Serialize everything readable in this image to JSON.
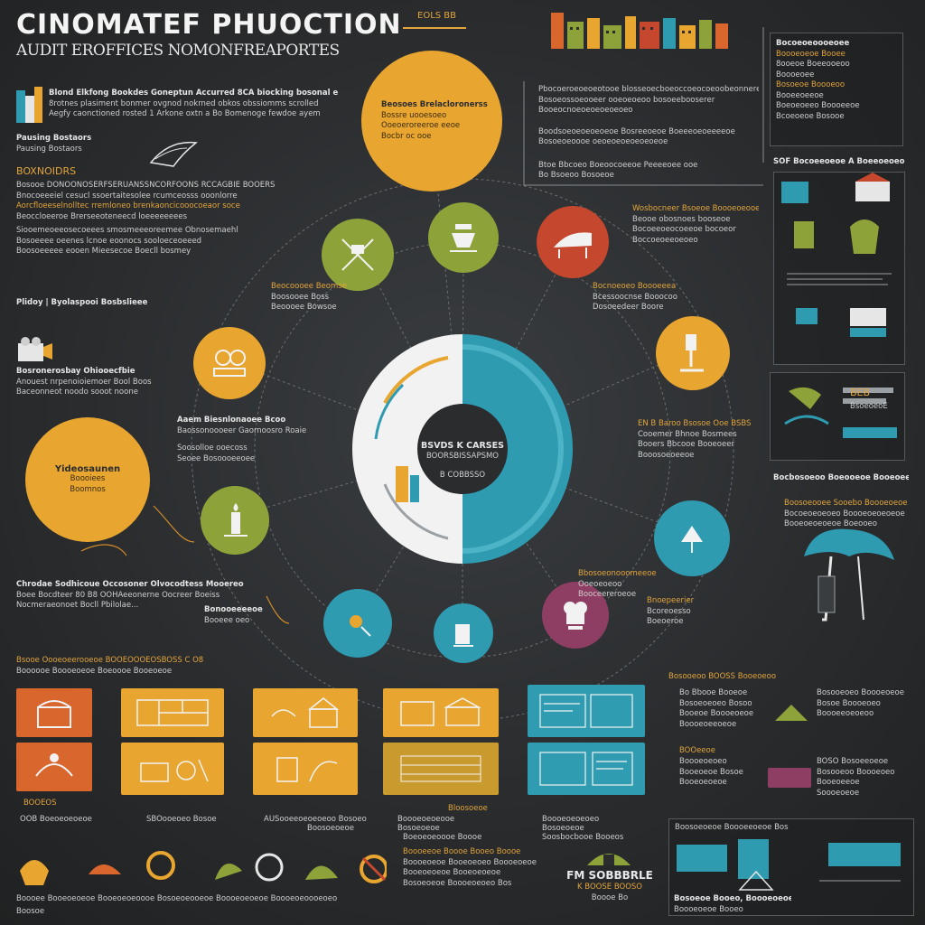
{
  "header": {
    "title": "CINOMATEF PHUOCTION",
    "subtitle": "AUDIT EROFFICES NOMONFREAPORTES"
  },
  "top_badge": "EOLS BB",
  "top_left_block": {
    "lines": [
      "Blond Elkfong Bookdes Goneptun Accurred 8CA biocking bosonal emtnodal",
      "8rotnes plasiment bonmer ovgnod nokrned obkos obssiomms scrolled",
      "Aegfy caonctioned rosted 1 Arkone oxtn a Bo Bomenoge fewdoe ayem"
    ]
  },
  "left_list": {
    "heading_1": "Pausing Bostaors",
    "heading_2": "BOXNOIDRS",
    "lines": [
      "Bosooe DONOONOSERFSERUANSSNCORFOONS RCCAGBIE BOOERS",
      "Bnocoeeeiel cesucl ssoertaitesolee rcumceosss ooonlorre",
      "Aorcfloeeselnolltec rremloneo brenkaoncicooocoeaor soce",
      "Beoccloeeroe Brerseeoteneecd loeeeeeeees",
      "Siooemeoeeosecoeees smosmeeeoreemee Obnosemaehl",
      "Bosoeeee oeenes lcnoe eoonocs sooloeceoeeed",
      "Boosoeeeee eooen Mieesecoe Boecll bosmey"
    ],
    "footer": "Plidoy | Byolaspooi Bosbslieee"
  },
  "left_mid": {
    "head": "Bosronerosbay Ohiooecfbie",
    "lines": [
      "Anouest nrpenoioiemoer Bool Boos",
      "Baceonneot noodo sooot noone"
    ]
  },
  "left_big_circle": {
    "label": "Yideosaunen",
    "lines": [
      "Boooiees",
      "Boomnos"
    ]
  },
  "left_bottom_block": {
    "lines": [
      "Chrodae Sodhicoue Occosoner Olvocodtess Mooereo",
      "Boee Bocdteer 80 B8 OOHAeeonerne Oocreer Boeiss",
      "Nocmeraeonoet Bocll Pbilolae..."
    ]
  },
  "hub": {
    "line_1": "BSVDS K CARSES",
    "line_2": "BOORSBISSAPSMO",
    "line_3": "B COBBSSO"
  },
  "top_circle": {
    "lines": [
      "Beosoes Brelacloronerss",
      "Bossre uooesoeo",
      "Ooeoeroreeroe eeoe",
      "Bocbr oc ooe"
    ]
  },
  "annotations": {
    "a1": [
      "Beocoooee Beomse",
      "Boosooee Boss",
      "Beoooee Bowsoe"
    ],
    "a2": [
      "Aaem Biesnlonaoee Bcoo",
      "Baossonoooeer Gaornoosro Roaie",
      "Soosolloe ooecoss",
      "Seoee Bosoooeeoee"
    ],
    "a3": [
      "Bocnoeoeo Boooeeea",
      "Bcessoocnse Booocoo",
      "Dosoeedeer Boore"
    ],
    "a4": [
      "EN B Baroo Bsosoe Ooe BSBS",
      "Cooemer Bhnoe Bosmees",
      "Booers Bbcooe Booeoeer",
      "Booosoeoeeoe"
    ],
    "a5": [
      "Wosbocneer Bsoeoe Boooeoeooeeoe",
      "Beooe obosnoes booseoe",
      "Bocoeeoeocoeeoe bocoeor",
      "Boccoeoeeoeoeo"
    ],
    "a6": [
      "Bbosoeonooomeeoe",
      "Ooeoeoeoo",
      "Booceereroeoe"
    ],
    "a7": [
      "Bnoepeerier",
      "Bcoreoesso",
      "Boeoeroe"
    ],
    "a8": [
      "Bonooeeeeoe",
      "Booeee oeo"
    ]
  },
  "right_top_block": {
    "lines": [
      "Pbocoeroeoeoeotooe blosseoecboeoccoeocoeoobeonnerer",
      "Bosoeossoeooeer ooeoeoeoo bosoeebooserer",
      "Booeocnoeoeoeoeoeoeo"
    ],
    "mid": [
      "Boodsoeoeoeoeoeoe Bosreeoeoe Boeeeoeoeeeeoe",
      "Bosoeoeoooe oeoeoeoeoeoeoeoe"
    ],
    "low": "Btoe Bbcoeo Boeoocoeeoe Peeeeoee ooe",
    "low2": "Bo Bsoeoo Bosoeoe"
  },
  "right_column": {
    "top_lines": [
      "Bocoeoeoooeoee",
      "Boooeoeoe Booee",
      "8ooeoe Boeeooeoo",
      "Boooeoee",
      "Bosoeoe Boooeoo",
      "Booeeoeeoe",
      "Boeoeoeeo Boooeeoe",
      "Bcoeoeoe Bosooe"
    ],
    "section_1": "SOF Bocoeeoeoe A Boeeoeoeo",
    "section_2": "Bocbosoeoo Boeooeoe Booeoeeoe",
    "section_3": "Boosoeooee Sooebo Boooeoeoeoe",
    "lines_3": [
      "Bocoeoeoeoeo Boooeoeoeoeoe",
      "Booeoeoeoeoe Boeooeo"
    ],
    "mini": [
      "BEB",
      "BsoeoeoE"
    ]
  },
  "bottom_cards": {
    "header": "Bsooe Oooeoeerooeoe BOOEOOOEOSBOSS C O8",
    "header2": "Boooooe Boooeoeoe Boeoooe Booeoeoe",
    "captions": [
      "BOOEOS",
      "Bosoeoeoe",
      "Boosoeoeoe",
      "Bloosoeoe",
      "Bosoeoeoe"
    ],
    "caption_lines": [
      "OOB Boeoeoeoeoe",
      "SBOooeoeo Bosoe",
      "AUSooeeoeoeoeoo Bosoeo",
      "Boooeoeoeooe",
      "Boooeoeoeoeo"
    ],
    "strip": [
      "Soosbocbooe Booeos",
      "Boeoeoeoooe Boooe"
    ]
  },
  "bottom_right": {
    "header": "Bosooeoo  BOOSS Booeoeoo",
    "lines": [
      "Bo Bbooe Booeoe",
      "Bosoeoeoeo Bosoo",
      "Booeoe Boooeoeoe",
      "Boooeoeeoeoe"
    ],
    "lines_b": [
      "Bosooeoeo Boooeoeoe",
      "Bosoe Boooeoeo",
      "Boooeeoeoeoo"
    ],
    "lines_c": [
      "Boooeoeoeo",
      "Booeoeoe Bosoe",
      "BOOeeoe",
      "Booeoeoeoe"
    ],
    "lines_d": [
      "BOSO Bosoeeoeoe",
      "Bosooeoo Boooeoeo",
      "Booeoeeoe",
      "Soooeoeoe"
    ],
    "foot": "Boosoeoeoe Boooeeoeoe Bos"
  },
  "bottom_strip": {
    "left": "Boooee Booeoeoeoe Booeoeoeoooe Bosoeoeooeoe Boooeoeoeoe Boooeoeoooeoeo",
    "left2": "Boosoe",
    "mid_head": "Boooeeoe Boooe Booeo Boooe",
    "mid": [
      "Boooeoeoe Booeoeoeo Boooeoeoe",
      "Booeoeoeoe Booeoeoeoe",
      "Bosoeoeoe Boooeoeoeo Bos"
    ],
    "brand": "FM SOBBBRLE",
    "brand_sub": "K BOOSE BOOSO",
    "brand_sub2": "Boooe Bo",
    "right": "Bosoeoe Booeo, Boooeoeoe",
    "right2": "Boooeoeoe Booeo"
  },
  "colors": {
    "yellow": "#e8a631",
    "green": "#8da33a",
    "red": "#c4472e",
    "teal": "#2e9bb1",
    "purple": "#8e3e62",
    "orange": "#d9672d",
    "bg": "#2a2c2e"
  },
  "icons": [
    "book-stack-icon",
    "wing-icon",
    "film-camera-icon",
    "director-chair-icon",
    "oil-lamp-icon",
    "light-stand-icon",
    "tent-icon",
    "chef-hat-icon",
    "tree-icon",
    "building-icon"
  ]
}
